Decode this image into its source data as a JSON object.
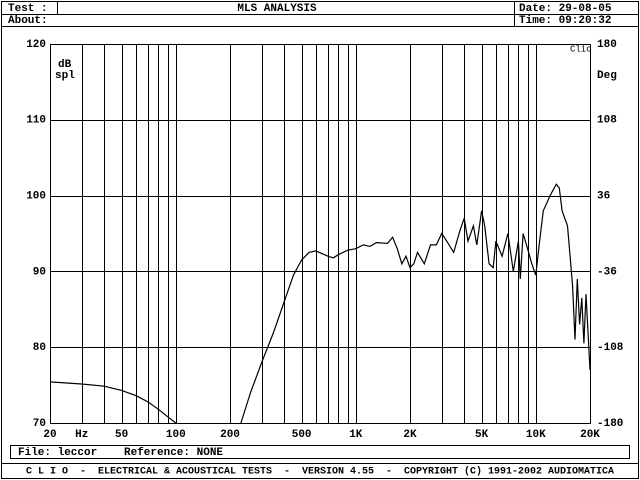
{
  "header": {
    "test": "Test :",
    "title": "MLS ANALYSIS",
    "date": "Date: 29-08-05",
    "about": "About:",
    "time": "Time: 09:20:32"
  },
  "chart_data": {
    "type": "line",
    "y_label": [
      "dB",
      "spl"
    ],
    "y2_label": "Deg",
    "badge": "Clio",
    "xscale": "log",
    "xlim": [
      20,
      20000
    ],
    "ylim": [
      70,
      120
    ],
    "y2lim": [
      -180,
      180
    ],
    "xticks": [
      20,
      {
        "value": 30,
        "label": "Hz"
      },
      50,
      100,
      200,
      500,
      {
        "value": 1000,
        "label": "1K"
      },
      {
        "value": 2000,
        "label": "2K"
      },
      {
        "value": 5000,
        "label": "5K"
      },
      {
        "value": 10000,
        "label": "10K"
      },
      {
        "value": 20000,
        "label": "20K"
      }
    ],
    "x_grid": [
      30,
      40,
      50,
      60,
      70,
      80,
      90,
      100,
      200,
      300,
      400,
      500,
      600,
      700,
      800,
      900,
      1000,
      2000,
      3000,
      4000,
      5000,
      6000,
      7000,
      8000,
      9000,
      10000
    ],
    "yticks": [
      70,
      80,
      90,
      100,
      110,
      120
    ],
    "y2ticks": [
      -180,
      -108,
      -36,
      36,
      108,
      180
    ],
    "grid": true,
    "series": [
      {
        "color": "#000000",
        "axis": "y",
        "x": [
          230,
          260,
          300,
          350,
          400,
          450,
          500,
          550,
          600,
          700,
          750,
          800,
          900,
          1000,
          1100,
          1200,
          1300,
          1500,
          1600,
          1700,
          1800,
          1900,
          2000,
          2100,
          2200,
          2400,
          2600,
          2800,
          3000,
          3200,
          3500,
          3800,
          4000,
          4200,
          4500,
          4700,
          5000,
          5200,
          5500,
          5800,
          6000,
          6500,
          7000,
          7500,
          8000,
          8200,
          8500,
          9000,
          9500,
          10000,
          10500,
          11000,
          12000,
          13000,
          13500,
          14000,
          15000,
          15500,
          16000,
          16500,
          17000,
          17500,
          18000,
          18500,
          19000,
          19500,
          20000
        ],
        "values": [
          70,
          74,
          78,
          82,
          86,
          89.5,
          91.5,
          92.5,
          92.7,
          92,
          91.8,
          92.2,
          92.8,
          93,
          93.5,
          93.3,
          93.8,
          93.7,
          94.5,
          93,
          91,
          92,
          90.5,
          91,
          92.5,
          91,
          93.5,
          93.5,
          95,
          94,
          92.5,
          95.5,
          97,
          94,
          96,
          93.5,
          98,
          96,
          91,
          90.5,
          94,
          92,
          95,
          90,
          94,
          89,
          95,
          93,
          91,
          89.5,
          94,
          98,
          100,
          101.5,
          101,
          98,
          96,
          92,
          88,
          81,
          89,
          83,
          86.5,
          80.5,
          87,
          82,
          77
        ]
      },
      {
        "color": "#000000",
        "axis": "y2",
        "x": [
          20,
          30,
          40,
          50,
          60,
          70,
          80,
          90,
          100
        ],
        "values": [
          -141,
          -143,
          -145,
          -149,
          -154,
          -160,
          -167,
          -174,
          -180
        ]
      }
    ]
  },
  "footer": {
    "file": "File: leccor",
    "reference": "Reference: NONE",
    "credits": "C L I O  -  ELECTRICAL & ACOUSTICAL TESTS  -  VERSION 4.55  -  COPYRIGHT (C) 1991-2002 AUDIOMATICA"
  }
}
